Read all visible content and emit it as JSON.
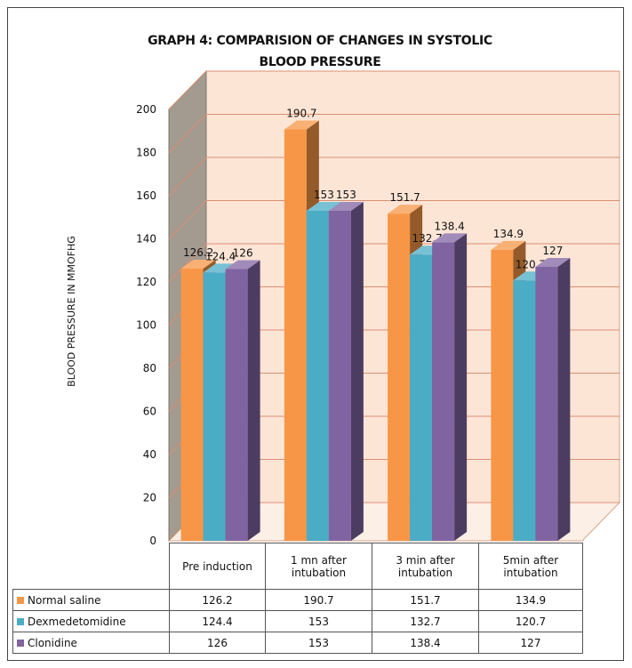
{
  "chart_data": {
    "type": "bar3d",
    "title": "GRAPH 4: COMPARISION OF CHANGES IN SYSTOLIC BLOOD PRESSURE",
    "y_label": "BLOOD PRESSURE IN MMOFHG",
    "categories": [
      "Pre induction",
      "1 mn after intubation",
      "3 min after intubation",
      "5min after intubation"
    ],
    "series": [
      {
        "name": "Normal saline",
        "color": "#f79646",
        "values": [
          126.2,
          190.7,
          151.7,
          134.9
        ]
      },
      {
        "name": "Dexmedetomidine",
        "color": "#4bacc6",
        "values": [
          124.4,
          153,
          132.7,
          120.7
        ]
      },
      {
        "name": "Clonidine",
        "color": "#8064a2",
        "values": [
          126,
          153,
          138.4,
          127
        ]
      }
    ],
    "ylim": [
      0,
      200
    ],
    "yticks": [
      0,
      20,
      40,
      60,
      80,
      100,
      120,
      140,
      160,
      180,
      200
    ],
    "grid": true
  }
}
